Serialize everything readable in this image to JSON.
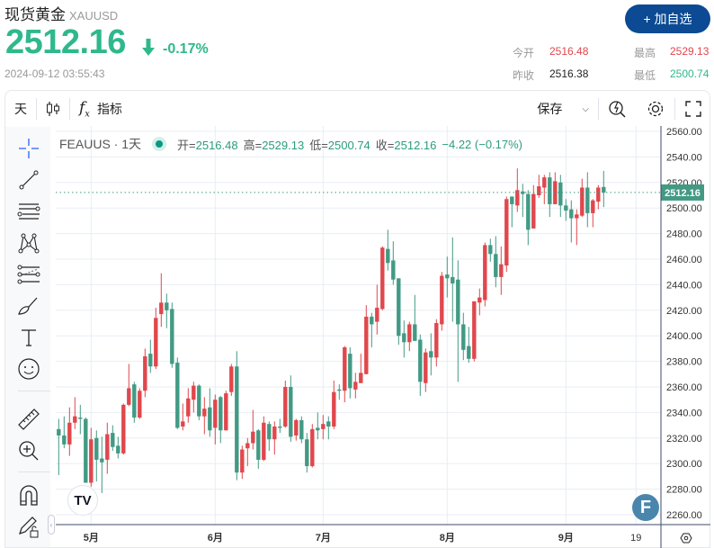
{
  "header": {
    "title": "现货黄金",
    "symbol": "XAUUSD",
    "price": "2512.16",
    "change_pct": "-0.17%",
    "timestamp": "2024-09-12 03:55:43",
    "add_watchlist": "+ 加自选"
  },
  "stats": {
    "open_label": "今开",
    "open": "2516.48",
    "high_label": "最高",
    "high": "2529.13",
    "prev_label": "昨收",
    "prev": "2516.38",
    "low_label": "最低",
    "low": "2500.74"
  },
  "colors": {
    "up": "#e0474c",
    "down": "#429a84",
    "accent": "#0c4a93"
  },
  "toolbar": {
    "interval": "天",
    "indicators": "指标",
    "save": "保存"
  },
  "legend": {
    "name": "FEAUUS · 1天",
    "o_label": "开=",
    "o": "2516.48",
    "h_label": "高=",
    "h": "2529.13",
    "l_label": "低=",
    "l": "2500.74",
    "c_label": "收=",
    "c": "2512.16",
    "change": "−4.22 (−0.17%)"
  },
  "chart_data": {
    "type": "candlestick",
    "ylim": [
      2255,
      2565
    ],
    "y_ticks": [
      "2560.00",
      "2540.00",
      "2520.00",
      "2500.00",
      "2480.00",
      "2460.00",
      "2440.00",
      "2420.00",
      "2400.00",
      "2380.00",
      "2360.00",
      "2340.00",
      "2320.00",
      "2300.00",
      "2280.00",
      "2260.00"
    ],
    "x_ticks": [
      {
        "label": "5月",
        "index": 6
      },
      {
        "label": "6月",
        "index": 29
      },
      {
        "label": "7月",
        "index": 49
      },
      {
        "label": "8月",
        "index": 72
      },
      {
        "label": "9月",
        "index": 94
      },
      {
        "label": "19",
        "index": 107
      }
    ],
    "last_price_label": "2512.16",
    "ohlc": [
      [
        2327,
        2335,
        2291,
        2322
      ],
      [
        2322,
        2337,
        2312,
        2315
      ],
      [
        2315,
        2344,
        2306,
        2332
      ],
      [
        2332,
        2352,
        2327,
        2337
      ],
      [
        2336,
        2346,
        2323,
        2335
      ],
      [
        2335,
        2336,
        2285,
        2285
      ],
      [
        2285,
        2328,
        2282,
        2319
      ],
      [
        2320,
        2326,
        2286,
        2303
      ],
      [
        2304,
        2321,
        2277,
        2301
      ],
      [
        2303,
        2332,
        2292,
        2323
      ],
      [
        2324,
        2330,
        2310,
        2313
      ],
      [
        2314,
        2321,
        2304,
        2308
      ],
      [
        2308,
        2347,
        2307,
        2346
      ],
      [
        2346,
        2378,
        2345,
        2359
      ],
      [
        2362,
        2364,
        2332,
        2336
      ],
      [
        2336,
        2359,
        2335,
        2357
      ],
      [
        2357,
        2390,
        2352,
        2384
      ],
      [
        2386,
        2397,
        2371,
        2376
      ],
      [
        2376,
        2422,
        2374,
        2414
      ],
      [
        2417,
        2449,
        2407,
        2426
      ],
      [
        2426,
        2433,
        2406,
        2420
      ],
      [
        2421,
        2426,
        2375,
        2378
      ],
      [
        2379,
        2383,
        2327,
        2328
      ],
      [
        2329,
        2347,
        2326,
        2333
      ],
      [
        2337,
        2359,
        2332,
        2351
      ],
      [
        2350,
        2364,
        2340,
        2361
      ],
      [
        2361,
        2362,
        2334,
        2337
      ],
      [
        2337,
        2352,
        2323,
        2343
      ],
      [
        2344,
        2359,
        2321,
        2326
      ],
      [
        2328,
        2354,
        2315,
        2350
      ],
      [
        2352,
        2353,
        2316,
        2326
      ],
      [
        2326,
        2357,
        2326,
        2355
      ],
      [
        2356,
        2378,
        2353,
        2376
      ],
      [
        2376,
        2388,
        2287,
        2293
      ],
      [
        2293,
        2314,
        2288,
        2311
      ],
      [
        2312,
        2320,
        2298,
        2316
      ],
      [
        2316,
        2342,
        2311,
        2325
      ],
      [
        2326,
        2327,
        2296,
        2303
      ],
      [
        2303,
        2337,
        2302,
        2332
      ],
      [
        2331,
        2333,
        2310,
        2319
      ],
      [
        2319,
        2333,
        2307,
        2329
      ],
      [
        2329,
        2335,
        2324,
        2328
      ],
      [
        2329,
        2365,
        2328,
        2360
      ],
      [
        2360,
        2369,
        2317,
        2321
      ],
      [
        2322,
        2335,
        2318,
        2334
      ],
      [
        2334,
        2337,
        2316,
        2319
      ],
      [
        2319,
        2324,
        2293,
        2298
      ],
      [
        2298,
        2331,
        2297,
        2327
      ],
      [
        2328,
        2340,
        2319,
        2326
      ],
      [
        2327,
        2338,
        2319,
        2331
      ],
      [
        2333,
        2337,
        2319,
        2329
      ],
      [
        2329,
        2365,
        2327,
        2356
      ],
      [
        2358,
        2362,
        2350,
        2357
      ],
      [
        2357,
        2392,
        2348,
        2391
      ],
      [
        2386,
        2391,
        2351,
        2359
      ],
      [
        2358,
        2371,
        2351,
        2364
      ],
      [
        2363,
        2386,
        2363,
        2371
      ],
      [
        2370,
        2424,
        2370,
        2415
      ],
      [
        2415,
        2418,
        2391,
        2409
      ],
      [
        2411,
        2440,
        2401,
        2422
      ],
      [
        2421,
        2470,
        2420,
        2469
      ],
      [
        2468,
        2483,
        2451,
        2457
      ],
      [
        2459,
        2474,
        2440,
        2444
      ],
      [
        2445,
        2445,
        2393,
        2400
      ],
      [
        2402,
        2412,
        2383,
        2395
      ],
      [
        2395,
        2411,
        2388,
        2409
      ],
      [
        2409,
        2432,
        2396,
        2396
      ],
      [
        2397,
        2401,
        2353,
        2364
      ],
      [
        2363,
        2390,
        2356,
        2387
      ],
      [
        2388,
        2402,
        2369,
        2383
      ],
      [
        2383,
        2413,
        2376,
        2410
      ],
      [
        2409,
        2450,
        2404,
        2447
      ],
      [
        2448,
        2462,
        2430,
        2445
      ],
      [
        2446,
        2477,
        2411,
        2441
      ],
      [
        2444,
        2459,
        2364,
        2409
      ],
      [
        2409,
        2418,
        2381,
        2389
      ],
      [
        2392,
        2407,
        2379,
        2382
      ],
      [
        2382,
        2427,
        2380,
        2427
      ],
      [
        2426,
        2437,
        2416,
        2430
      ],
      [
        2428,
        2473,
        2423,
        2471
      ],
      [
        2471,
        2476,
        2458,
        2464
      ],
      [
        2464,
        2478,
        2438,
        2446
      ],
      [
        2446,
        2470,
        2432,
        2456
      ],
      [
        2455,
        2509,
        2450,
        2507
      ],
      [
        2509,
        2509,
        2485,
        2503
      ],
      [
        2502,
        2531,
        2497,
        2514
      ],
      [
        2513,
        2519,
        2493,
        2511
      ],
      [
        2511,
        2514,
        2471,
        2483
      ],
      [
        2484,
        2518,
        2484,
        2511
      ],
      [
        2510,
        2526,
        2508,
        2517
      ],
      [
        2516,
        2526,
        2503,
        2524
      ],
      [
        2524,
        2528,
        2493,
        2503
      ],
      [
        2503,
        2528,
        2503,
        2521
      ],
      [
        2520,
        2526,
        2493,
        2502
      ],
      [
        2502,
        2507,
        2490,
        2498
      ],
      [
        2499,
        2506,
        2473,
        2492
      ],
      [
        2492,
        2499,
        2471,
        2495
      ],
      [
        2494,
        2523,
        2493,
        2516
      ],
      [
        2516,
        2528,
        2485,
        2496
      ],
      [
        2496,
        2507,
        2485,
        2506
      ],
      [
        2505,
        2518,
        2499,
        2516
      ],
      [
        2516.48,
        2529.13,
        2500.74,
        2512.16
      ]
    ]
  }
}
